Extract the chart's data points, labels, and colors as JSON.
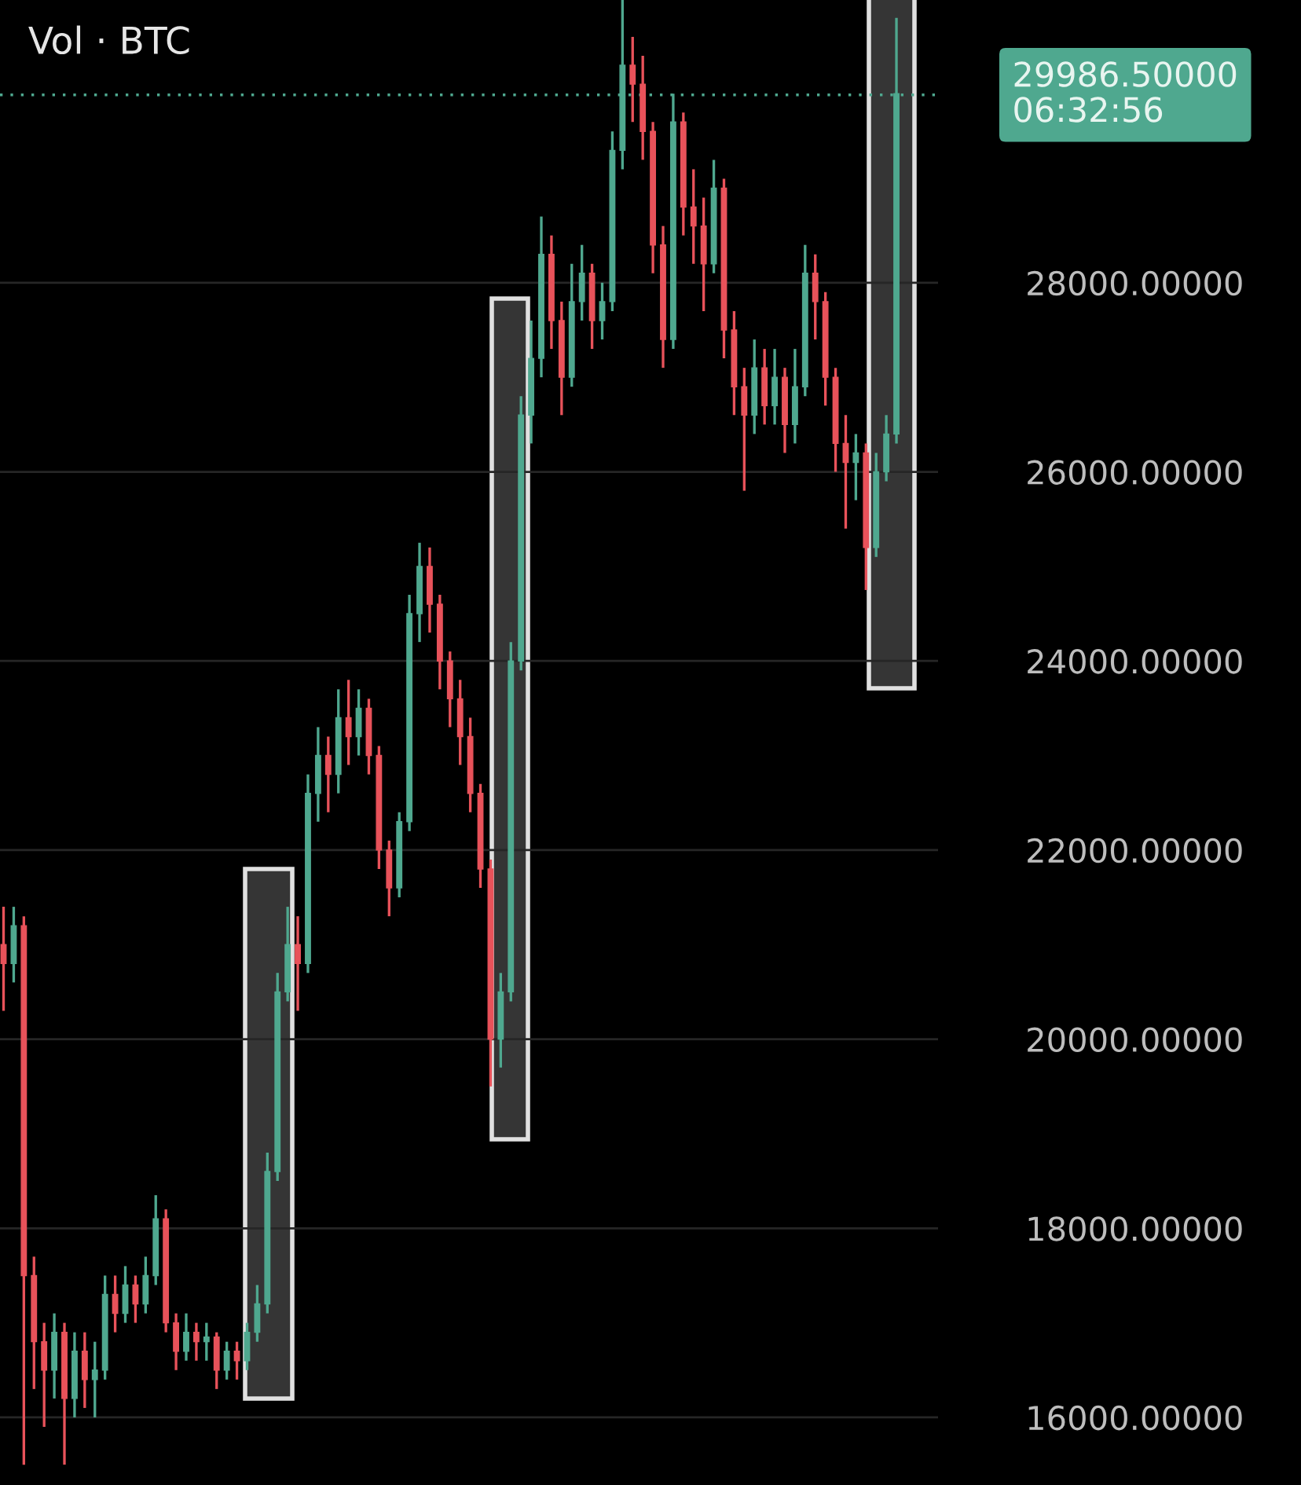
{
  "chart_data": {
    "type": "candlestick",
    "title": "Vol · BTC",
    "categories": [
      null,
      null,
      null,
      null,
      null,
      null,
      null,
      null,
      null,
      null,
      null,
      null,
      null,
      null,
      null,
      null,
      null,
      null,
      null,
      null,
      null,
      null,
      null,
      null,
      null,
      null,
      null,
      null,
      null,
      null,
      null,
      null,
      null,
      null,
      null,
      null,
      null,
      null,
      null,
      null,
      null,
      null,
      null,
      null,
      null,
      null,
      null,
      null,
      null,
      null,
      null,
      null,
      null,
      null,
      null,
      null,
      null,
      null,
      null,
      null,
      null,
      null,
      null,
      null,
      null,
      null,
      null,
      null,
      null,
      null,
      null,
      null,
      null,
      null,
      null,
      null,
      null,
      null,
      null,
      null,
      null,
      null,
      null,
      null,
      null,
      null,
      null,
      null,
      null
    ],
    "ohlc": [
      [
        21000,
        21400,
        20300,
        20800
      ],
      [
        20800,
        21400,
        20600,
        21200
      ],
      [
        21200,
        21300,
        15500,
        17500
      ],
      [
        17500,
        17700,
        16300,
        16800
      ],
      [
        16800,
        17000,
        15900,
        16500
      ],
      [
        16500,
        17100,
        16200,
        16900
      ],
      [
        16900,
        17000,
        15500,
        16200
      ],
      [
        16200,
        16900,
        16000,
        16700
      ],
      [
        16700,
        16900,
        16100,
        16400
      ],
      [
        16400,
        16800,
        16000,
        16500
      ],
      [
        16500,
        17500,
        16400,
        17300
      ],
      [
        17300,
        17500,
        16900,
        17100
      ],
      [
        17100,
        17600,
        17000,
        17400
      ],
      [
        17400,
        17500,
        17000,
        17200
      ],
      [
        17200,
        17700,
        17100,
        17500
      ],
      [
        17500,
        18350,
        17400,
        18100
      ],
      [
        18100,
        18200,
        16900,
        17000
      ],
      [
        17000,
        17100,
        16500,
        16700
      ],
      [
        16700,
        17100,
        16600,
        16900
      ],
      [
        16900,
        17000,
        16600,
        16800
      ],
      [
        16800,
        17000,
        16600,
        16850
      ],
      [
        16850,
        16900,
        16300,
        16500
      ],
      [
        16500,
        16800,
        16400,
        16700
      ],
      [
        16700,
        16800,
        16400,
        16600
      ],
      [
        16600,
        17000,
        16500,
        16900
      ],
      [
        16900,
        17400,
        16800,
        17200
      ],
      [
        17200,
        18800,
        17100,
        18600
      ],
      [
        18600,
        20700,
        18500,
        20500
      ],
      [
        20500,
        21400,
        20400,
        21000
      ],
      [
        21000,
        21300,
        20300,
        20800
      ],
      [
        20800,
        22800,
        20700,
        22600
      ],
      [
        22600,
        23300,
        22300,
        23000
      ],
      [
        23000,
        23200,
        22400,
        22800
      ],
      [
        22800,
        23700,
        22600,
        23400
      ],
      [
        23400,
        23800,
        22900,
        23200
      ],
      [
        23200,
        23700,
        23000,
        23500
      ],
      [
        23500,
        23600,
        22800,
        23000
      ],
      [
        23000,
        23100,
        21800,
        22000
      ],
      [
        22000,
        22100,
        21300,
        21600
      ],
      [
        21600,
        22400,
        21500,
        22300
      ],
      [
        22300,
        24700,
        22200,
        24500
      ],
      [
        24500,
        25250,
        24200,
        25000
      ],
      [
        25000,
        25200,
        24300,
        24600
      ],
      [
        24600,
        24700,
        23700,
        24000
      ],
      [
        24000,
        24100,
        23300,
        23600
      ],
      [
        23600,
        23800,
        22900,
        23200
      ],
      [
        23200,
        23400,
        22400,
        22600
      ],
      [
        22600,
        22700,
        21600,
        21800
      ],
      [
        21800,
        21900,
        19500,
        20000
      ],
      [
        20000,
        20700,
        19700,
        20500
      ],
      [
        20500,
        24200,
        20400,
        24000
      ],
      [
        24000,
        26800,
        23900,
        26600
      ],
      [
        26600,
        27600,
        26300,
        27200
      ],
      [
        27200,
        28700,
        27000,
        28300
      ],
      [
        28300,
        28500,
        27300,
        27600
      ],
      [
        27600,
        27800,
        26600,
        27000
      ],
      [
        27000,
        28200,
        26900,
        27800
      ],
      [
        27800,
        28400,
        27600,
        28100
      ],
      [
        28100,
        28200,
        27300,
        27600
      ],
      [
        27600,
        28000,
        27400,
        27800
      ],
      [
        27800,
        29600,
        27700,
        29400
      ],
      [
        29400,
        31000,
        29200,
        30300
      ],
      [
        30300,
        30600,
        29700,
        30100
      ],
      [
        30100,
        30400,
        29300,
        29600
      ],
      [
        29600,
        29700,
        28100,
        28400
      ],
      [
        28400,
        28600,
        27100,
        27400
      ],
      [
        27400,
        30000,
        27300,
        29700
      ],
      [
        29700,
        29800,
        28500,
        28800
      ],
      [
        28800,
        29200,
        28200,
        28600
      ],
      [
        28600,
        28900,
        27700,
        28200
      ],
      [
        28200,
        29300,
        28100,
        29000
      ],
      [
        29000,
        29100,
        27200,
        27500
      ],
      [
        27500,
        27700,
        26600,
        26900
      ],
      [
        26900,
        27100,
        25800,
        26600
      ],
      [
        26600,
        27400,
        26400,
        27100
      ],
      [
        27100,
        27300,
        26500,
        26700
      ],
      [
        26700,
        27300,
        26500,
        27000
      ],
      [
        27000,
        27100,
        26200,
        26500
      ],
      [
        26500,
        27300,
        26300,
        26900
      ],
      [
        26900,
        28400,
        26800,
        28100
      ],
      [
        28100,
        28300,
        27400,
        27800
      ],
      [
        27800,
        27900,
        26700,
        27000
      ],
      [
        27000,
        27100,
        26000,
        26300
      ],
      [
        26300,
        26600,
        25400,
        26100
      ],
      [
        26100,
        26400,
        25700,
        26200
      ],
      [
        26200,
        26300,
        24750,
        25200
      ],
      [
        25200,
        26200,
        25100,
        26000
      ],
      [
        26000,
        26600,
        25900,
        26400
      ],
      [
        26400,
        30800,
        26300,
        30000
      ]
    ],
    "colors": [
      "#e8525a",
      "#4fa88f",
      "#e8525a",
      "#e8525a",
      "#e8525a",
      "#4fa88f",
      "#e8525a",
      "#4fa88f",
      "#e8525a",
      "#4fa88f",
      "#4fa88f",
      "#e8525a",
      "#4fa88f",
      "#e8525a",
      "#4fa88f",
      "#4fa88f",
      "#e8525a",
      "#e8525a",
      "#4fa88f",
      "#e8525a",
      "#4fa88f",
      "#e8525a",
      "#4fa88f",
      "#e8525a",
      "#4fa88f",
      "#4fa88f",
      "#4fa88f",
      "#4fa88f",
      "#4fa88f",
      "#e8525a",
      "#4fa88f",
      "#4fa88f",
      "#e8525a",
      "#4fa88f",
      "#e8525a",
      "#4fa88f",
      "#e8525a",
      "#e8525a",
      "#e8525a",
      "#4fa88f",
      "#4fa88f",
      "#4fa88f",
      "#e8525a",
      "#e8525a",
      "#e8525a",
      "#e8525a",
      "#e8525a",
      "#e8525a",
      "#e8525a",
      "#4fa88f",
      "#4fa88f",
      "#4fa88f",
      "#4fa88f",
      "#4fa88f",
      "#e8525a",
      "#e8525a",
      "#4fa88f",
      "#4fa88f",
      "#e8525a",
      "#4fa88f",
      "#4fa88f",
      "#4fa88f",
      "#e8525a",
      "#e8525a",
      "#e8525a",
      "#e8525a",
      "#4fa88f",
      "#e8525a",
      "#e8525a",
      "#e8525a",
      "#4fa88f",
      "#e8525a",
      "#e8525a",
      "#e8525a",
      "#4fa88f",
      "#e8525a",
      "#4fa88f",
      "#e8525a",
      "#4fa88f",
      "#4fa88f",
      "#e8525a",
      "#e8525a",
      "#e8525a",
      "#e8525a",
      "#4fa88f",
      "#e8525a",
      "#4fa88f",
      "#4fa88f",
      "#4fa88f"
    ],
    "ylim": [
      15285,
      30990
    ],
    "yticks": [
      {
        "value": 16000,
        "label": "16000.00000"
      },
      {
        "value": 18000,
        "label": "18000.00000"
      },
      {
        "value": 20000,
        "label": "20000.00000"
      },
      {
        "value": 22000,
        "label": "22000.00000"
      },
      {
        "value": 24000,
        "label": "24000.00000"
      },
      {
        "value": 26000,
        "label": "26000.00000"
      },
      {
        "value": 28000,
        "label": "28000.00000"
      }
    ],
    "ref_lines": [
      {
        "axis": "y",
        "value": 29986.5,
        "label": "29986.50000\n06:32:56",
        "color": "#4fa88f",
        "line_style": "dotted"
      }
    ],
    "grid": "y",
    "tick_labels": "y"
  }
}
